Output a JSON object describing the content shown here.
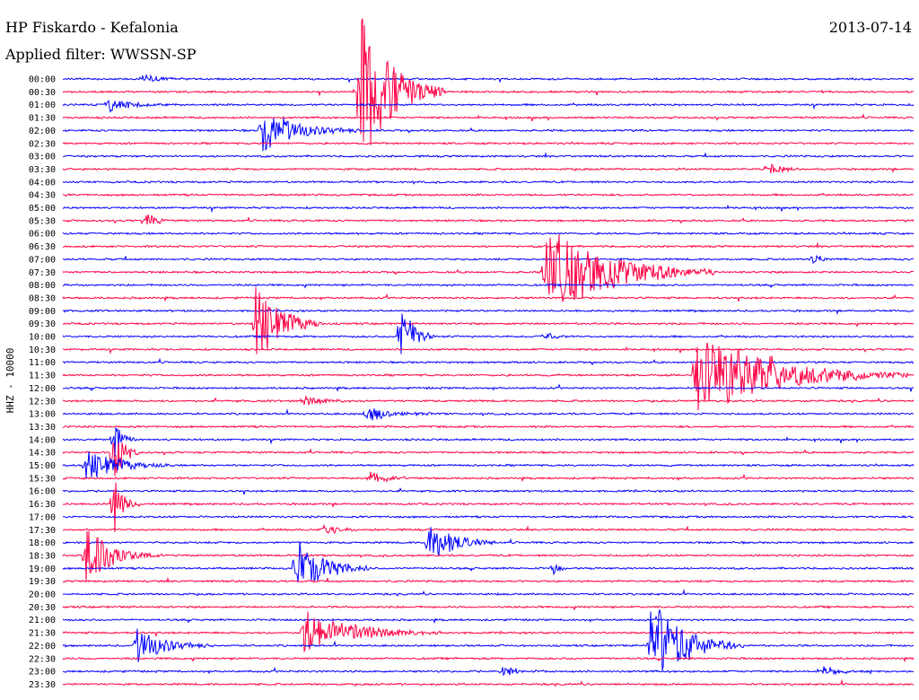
{
  "header": {
    "station": "HP Fiskardo - Kefalonia",
    "date": "2013-07-14",
    "filter": "Applied filter: WWSSN-SP"
  },
  "chart_data": {
    "type": "line",
    "title": "HP Fiskardo - Kefalonia",
    "subtitle": "Applied filter: WWSSN-SP",
    "ylabel": "HHZ - 10000",
    "trace_colors": [
      "#0000ff",
      "#ff0044"
    ],
    "times": [
      "00:00",
      "00:30",
      "01:00",
      "01:30",
      "02:00",
      "02:30",
      "03:00",
      "03:30",
      "04:00",
      "04:30",
      "05:00",
      "05:30",
      "06:00",
      "06:30",
      "07:00",
      "07:30",
      "08:00",
      "08:30",
      "09:00",
      "09:30",
      "10:00",
      "10:30",
      "11:00",
      "11:30",
      "12:00",
      "12:30",
      "13:00",
      "13:30",
      "14:00",
      "14:30",
      "15:00",
      "15:30",
      "16:00",
      "16:30",
      "17:00",
      "17:30",
      "18:00",
      "18:30",
      "19:00",
      "19:30",
      "20:00",
      "20:30",
      "21:00",
      "21:30",
      "22:00",
      "22:30",
      "23:00",
      "23:30"
    ],
    "row_minutes": 30,
    "events": [
      {
        "row": 1,
        "minute": 10.5,
        "amplitude": 6.5,
        "duration": 1.0
      },
      {
        "row": 4,
        "minute": 7.0,
        "amplitude": 1.8,
        "duration": 1.2
      },
      {
        "row": 2,
        "minute": 1.6,
        "amplitude": 0.6,
        "duration": 0.8
      },
      {
        "row": 0,
        "minute": 2.8,
        "amplitude": 0.4,
        "duration": 0.6
      },
      {
        "row": 11,
        "minute": 2.9,
        "amplitude": 0.8,
        "duration": 0.4
      },
      {
        "row": 7,
        "minute": 24.8,
        "amplitude": 0.5,
        "duration": 0.5
      },
      {
        "row": 15,
        "minute": 17.0,
        "amplitude": 4.0,
        "duration": 2.0
      },
      {
        "row": 14,
        "minute": 26.4,
        "amplitude": 0.6,
        "duration": 0.3
      },
      {
        "row": 19,
        "minute": 6.8,
        "amplitude": 3.5,
        "duration": 0.8
      },
      {
        "row": 20,
        "minute": 11.9,
        "amplitude": 3.0,
        "duration": 0.4
      },
      {
        "row": 20,
        "minute": 17.0,
        "amplitude": 0.5,
        "duration": 0.3
      },
      {
        "row": 23,
        "minute": 22.3,
        "amplitude": 3.5,
        "duration": 2.5
      },
      {
        "row": 23,
        "minute": 24.9,
        "amplitude": 0.8,
        "duration": 0.3
      },
      {
        "row": 25,
        "minute": 8.5,
        "amplitude": 0.4,
        "duration": 0.8
      },
      {
        "row": 26,
        "minute": 10.7,
        "amplitude": 0.7,
        "duration": 0.8
      },
      {
        "row": 28,
        "minute": 1.8,
        "amplitude": 1.5,
        "duration": 0.3
      },
      {
        "row": 29,
        "minute": 1.8,
        "amplitude": 3.0,
        "duration": 0.3
      },
      {
        "row": 30,
        "minute": 0.8,
        "amplitude": 1.5,
        "duration": 1.0
      },
      {
        "row": 31,
        "minute": 10.8,
        "amplitude": 0.6,
        "duration": 0.6
      },
      {
        "row": 33,
        "minute": 1.8,
        "amplitude": 2.5,
        "duration": 0.3
      },
      {
        "row": 35,
        "minute": 9.2,
        "amplitude": 0.4,
        "duration": 0.6
      },
      {
        "row": 36,
        "minute": 12.9,
        "amplitude": 1.8,
        "duration": 0.8
      },
      {
        "row": 37,
        "minute": 0.8,
        "amplitude": 2.2,
        "duration": 0.9
      },
      {
        "row": 38,
        "minute": 8.2,
        "amplitude": 2.5,
        "duration": 0.9
      },
      {
        "row": 38,
        "minute": 17.3,
        "amplitude": 0.5,
        "duration": 0.2
      },
      {
        "row": 43,
        "minute": 8.5,
        "amplitude": 1.9,
        "duration": 1.6
      },
      {
        "row": 44,
        "minute": 2.6,
        "amplitude": 1.6,
        "duration": 0.9
      },
      {
        "row": 44,
        "minute": 20.7,
        "amplitude": 4.0,
        "duration": 1.1
      },
      {
        "row": 46,
        "minute": 15.5,
        "amplitude": 0.4,
        "duration": 0.6
      },
      {
        "row": 46,
        "minute": 26.8,
        "amplitude": 0.4,
        "duration": 0.6
      }
    ]
  }
}
